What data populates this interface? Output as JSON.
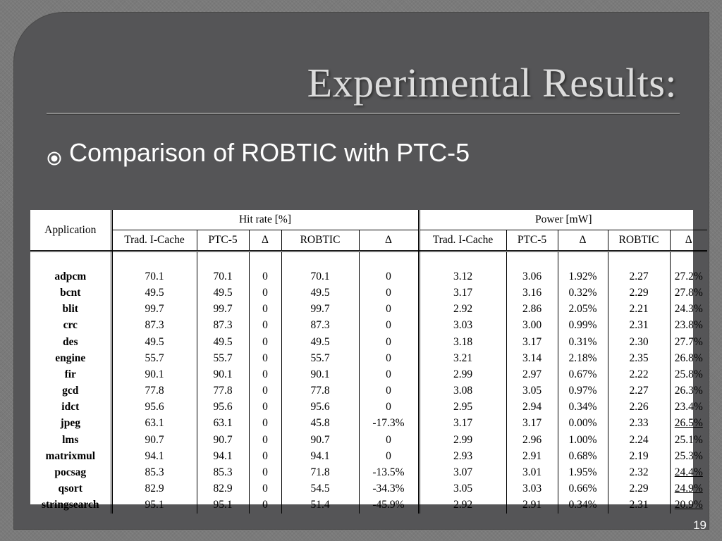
{
  "slide": {
    "title": "Experimental Results:",
    "bullet": "Comparison of ROBTIC with PTC-5",
    "page_number": "19"
  },
  "table": {
    "application_header": "Application",
    "group_headers": [
      "Hit rate [%]",
      "Power [mW]"
    ],
    "sub_headers": [
      "Trad. I-Cache",
      "PTC-5",
      "Δ",
      "ROBTIC",
      "Δ",
      "Trad. I-Cache",
      "PTC-5",
      "Δ",
      "ROBTIC",
      "Δ"
    ],
    "rows": [
      {
        "app": "adpcm",
        "cells": [
          "70.1",
          "70.1",
          "0",
          "70.1",
          "0",
          "3.12",
          "3.06",
          "1.92%",
          "2.27",
          "27.2%"
        ],
        "underline_last": false
      },
      {
        "app": "bcnt",
        "cells": [
          "49.5",
          "49.5",
          "0",
          "49.5",
          "0",
          "3.17",
          "3.16",
          "0.32%",
          "2.29",
          "27.8%"
        ],
        "underline_last": false
      },
      {
        "app": "blit",
        "cells": [
          "99.7",
          "99.7",
          "0",
          "99.7",
          "0",
          "2.92",
          "2.86",
          "2.05%",
          "2.21",
          "24.3%"
        ],
        "underline_last": false
      },
      {
        "app": "crc",
        "cells": [
          "87.3",
          "87.3",
          "0",
          "87.3",
          "0",
          "3.03",
          "3.00",
          "0.99%",
          "2.31",
          "23.8%"
        ],
        "underline_last": false
      },
      {
        "app": "des",
        "cells": [
          "49.5",
          "49.5",
          "0",
          "49.5",
          "0",
          "3.18",
          "3.17",
          "0.31%",
          "2.30",
          "27.7%"
        ],
        "underline_last": false
      },
      {
        "app": "engine",
        "cells": [
          "55.7",
          "55.7",
          "0",
          "55.7",
          "0",
          "3.21",
          "3.14",
          "2.18%",
          "2.35",
          "26.8%"
        ],
        "underline_last": false
      },
      {
        "app": "fir",
        "cells": [
          "90.1",
          "90.1",
          "0",
          "90.1",
          "0",
          "2.99",
          "2.97",
          "0.67%",
          "2.22",
          "25.8%"
        ],
        "underline_last": false
      },
      {
        "app": "gcd",
        "cells": [
          "77.8",
          "77.8",
          "0",
          "77.8",
          "0",
          "3.08",
          "3.05",
          "0.97%",
          "2.27",
          "26.3%"
        ],
        "underline_last": false
      },
      {
        "app": "idct",
        "cells": [
          "95.6",
          "95.6",
          "0",
          "95.6",
          "0",
          "2.95",
          "2.94",
          "0.34%",
          "2.26",
          "23.4%"
        ],
        "underline_last": false
      },
      {
        "app": "jpeg",
        "cells": [
          "63.1",
          "63.1",
          "0",
          "45.8",
          "-17.3%",
          "3.17",
          "3.17",
          "0.00%",
          "2.33",
          "26.5%"
        ],
        "underline_last": true
      },
      {
        "app": "lms",
        "cells": [
          "90.7",
          "90.7",
          "0",
          "90.7",
          "0",
          "2.99",
          "2.96",
          "1.00%",
          "2.24",
          "25.1%"
        ],
        "underline_last": false
      },
      {
        "app": "matrixmul",
        "cells": [
          "94.1",
          "94.1",
          "0",
          "94.1",
          "0",
          "2.93",
          "2.91",
          "0.68%",
          "2.19",
          "25.3%"
        ],
        "underline_last": false
      },
      {
        "app": "pocsag",
        "cells": [
          "85.3",
          "85.3",
          "0",
          "71.8",
          "-13.5%",
          "3.07",
          "3.01",
          "1.95%",
          "2.32",
          "24.4%"
        ],
        "underline_last": true
      },
      {
        "app": "qsort",
        "cells": [
          "82.9",
          "82.9",
          "0",
          "54.5",
          "-34.3%",
          "3.05",
          "3.03",
          "0.66%",
          "2.29",
          "24.9%"
        ],
        "underline_last": true
      },
      {
        "app": "stringsearch",
        "cells": [
          "95.1",
          "95.1",
          "0",
          "51.4",
          "-45.9%",
          "2.92",
          "2.91",
          "0.34%",
          "2.31",
          "20.9%"
        ],
        "underline_last": true
      }
    ]
  },
  "icons": {
    "bullet": "circled-dot-bullet-icon"
  },
  "colors": {
    "panel": "#555557",
    "background": "#7a7a7a",
    "title": "#dcdcdc",
    "text": "#ffffff"
  }
}
